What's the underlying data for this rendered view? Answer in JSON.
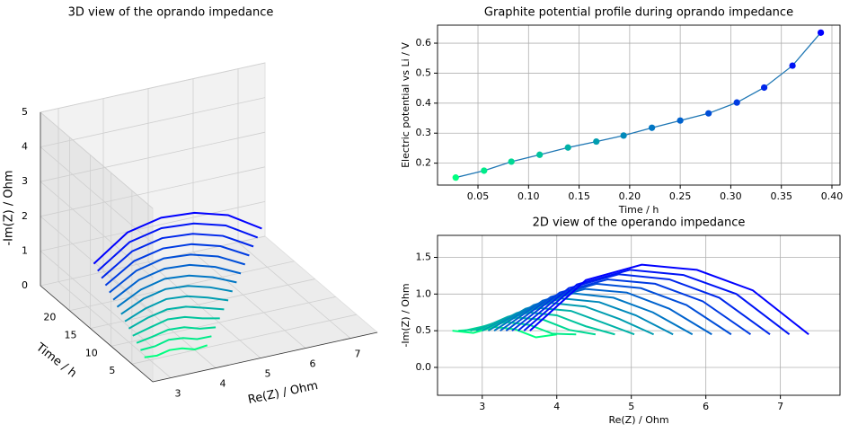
{
  "chart_data": [
    {
      "type": "line3d",
      "title": "3D view of the oprando impedance",
      "xlabel": "Re(Z) / Ohm",
      "ylabel": "Time / h",
      "zlabel": "-Im(Z) / Ohm",
      "xlim": [
        2.6,
        7.6
      ],
      "xticks": [
        3,
        4,
        5,
        6,
        7
      ],
      "ylim": [
        0,
        27
      ],
      "yticks": [
        5,
        10,
        15,
        20
      ],
      "zlim": [
        0,
        5
      ],
      "zticks": [
        0,
        1,
        2,
        3,
        4,
        5
      ],
      "series": [
        {
          "time": 2,
          "color": "#00ff80",
          "x": [
            2.6,
            2.88,
            3.16,
            3.44,
            3.72,
            4.0
          ],
          "values": [
            0.5,
            0.47,
            0.55,
            0.52,
            0.41,
            0.45
          ]
        },
        {
          "time": 3.8,
          "color": "#00eb89",
          "x": [
            2.68,
            3.0,
            3.31,
            3.63,
            3.94,
            4.26
          ],
          "values": [
            0.5,
            0.52,
            0.62,
            0.58,
            0.46,
            0.45
          ]
        },
        {
          "time": 5.6,
          "color": "#00d893",
          "x": [
            2.76,
            3.11,
            3.46,
            3.82,
            4.17,
            4.52
          ],
          "values": [
            0.5,
            0.58,
            0.68,
            0.65,
            0.51,
            0.45
          ]
        },
        {
          "time": 7.4,
          "color": "#00c49d",
          "x": [
            2.84,
            3.23,
            3.62,
            4.0,
            4.39,
            4.78
          ],
          "values": [
            0.5,
            0.63,
            0.75,
            0.71,
            0.56,
            0.45
          ]
        },
        {
          "time": 9.2,
          "color": "#00b1a7",
          "x": [
            2.92,
            3.34,
            3.77,
            4.19,
            4.62,
            5.04
          ],
          "values": [
            0.5,
            0.69,
            0.81,
            0.77,
            0.61,
            0.45
          ]
        },
        {
          "time": 11,
          "color": "#009db0",
          "x": [
            3.0,
            3.46,
            3.92,
            4.38,
            4.84,
            5.3
          ],
          "values": [
            0.5,
            0.74,
            0.88,
            0.83,
            0.66,
            0.45
          ]
        },
        {
          "time": 12.8,
          "color": "#0089ba",
          "x": [
            3.08,
            3.58,
            4.07,
            4.57,
            5.06,
            5.56
          ],
          "values": [
            0.5,
            0.8,
            0.94,
            0.89,
            0.71,
            0.45
          ]
        },
        {
          "time": 14.6,
          "color": "#0076c4",
          "x": [
            3.16,
            3.69,
            4.22,
            4.76,
            5.29,
            5.82
          ],
          "values": [
            0.5,
            0.85,
            1.01,
            0.95,
            0.75,
            0.45
          ]
        },
        {
          "time": 16.4,
          "color": "#0062ce",
          "x": [
            3.24,
            3.81,
            4.38,
            4.94,
            5.51,
            6.08
          ],
          "values": [
            0.5,
            0.91,
            1.07,
            1.02,
            0.8,
            0.45
          ]
        },
        {
          "time": 18.2,
          "color": "#004ed8",
          "x": [
            3.32,
            3.92,
            4.53,
            5.13,
            5.74,
            6.34
          ],
          "values": [
            0.5,
            0.96,
            1.14,
            1.08,
            0.85,
            0.45
          ]
        },
        {
          "time": 20,
          "color": "#003be2",
          "x": [
            3.4,
            4.04,
            4.68,
            5.32,
            5.96,
            6.6
          ],
          "values": [
            0.5,
            1.02,
            1.2,
            1.14,
            0.9,
            0.45
          ]
        },
        {
          "time": 21.8,
          "color": "#0027eb",
          "x": [
            3.48,
            4.16,
            4.83,
            5.51,
            6.18,
            6.86
          ],
          "values": [
            0.5,
            1.08,
            1.27,
            1.2,
            0.95,
            0.45
          ]
        },
        {
          "time": 23.6,
          "color": "#0014f5",
          "x": [
            3.56,
            4.27,
            4.98,
            5.7,
            6.41,
            7.12
          ],
          "values": [
            0.5,
            1.13,
            1.33,
            1.26,
            1.0,
            0.45
          ]
        },
        {
          "time": 25.4,
          "color": "#0000ff",
          "x": [
            3.64,
            4.39,
            5.14,
            5.88,
            6.63,
            7.38
          ],
          "values": [
            0.5,
            1.19,
            1.4,
            1.33,
            1.05,
            0.45
          ]
        }
      ]
    },
    {
      "type": "line",
      "title": "Graphite potential profile during oprando impedance",
      "xlabel": "Time / h",
      "ylabel": "Electric potential vs Li / V",
      "color": "#1f77b4",
      "grid": true,
      "x": [
        0.028,
        0.056,
        0.083,
        0.111,
        0.139,
        0.167,
        0.194,
        0.222,
        0.25,
        0.278,
        0.306,
        0.333,
        0.361,
        0.389
      ],
      "values": [
        0.152,
        0.175,
        0.205,
        0.228,
        0.252,
        0.272,
        0.292,
        0.318,
        0.342,
        0.366,
        0.402,
        0.452,
        0.525,
        0.635
      ],
      "point_colors": [
        "#00ff80",
        "#00eb89",
        "#00d893",
        "#00c49d",
        "#00b1a7",
        "#009db0",
        "#0089ba",
        "#0076c4",
        "#0062ce",
        "#004ed8",
        "#003be2",
        "#0027eb",
        "#0014f5",
        "#0000ff"
      ],
      "xlim": [
        0.01,
        0.408
      ],
      "xticks": [
        0.05,
        {
          "value": 0.1,
          "label": "0.10"
        },
        0.15,
        {
          "value": 0.2,
          "label": "0.20"
        },
        0.25,
        {
          "value": 0.3,
          "label": "0.30"
        },
        0.35,
        {
          "value": 0.4,
          "label": "0.40"
        }
      ],
      "ylim": [
        0.127,
        0.66
      ],
      "yticks": [
        0.2,
        0.3,
        0.4,
        0.5,
        0.6
      ]
    },
    {
      "type": "line",
      "title": "2D view of the operando impedance",
      "xlabel": "Re(Z) / Ohm",
      "ylabel": "-Im(Z) / Ohm",
      "grid": true,
      "xlim": [
        2.4,
        7.8
      ],
      "xticks": [
        3,
        4,
        5,
        6,
        7
      ],
      "ylim": [
        -0.38,
        1.8
      ],
      "yticks": [
        {
          "value": 0,
          "label": "0.0"
        },
        0.5,
        {
          "value": 1,
          "label": "1.0"
        },
        1.5
      ],
      "series": [
        {
          "color": "#00ff80",
          "x": [
            2.6,
            2.88,
            3.16,
            3.44,
            3.72,
            4.0
          ],
          "values": [
            0.5,
            0.47,
            0.55,
            0.52,
            0.41,
            0.45
          ]
        },
        {
          "color": "#00eb89",
          "x": [
            2.68,
            3.0,
            3.31,
            3.63,
            3.94,
            4.26
          ],
          "values": [
            0.5,
            0.52,
            0.62,
            0.58,
            0.46,
            0.45
          ]
        },
        {
          "color": "#00d893",
          "x": [
            2.76,
            3.11,
            3.46,
            3.82,
            4.17,
            4.52
          ],
          "values": [
            0.5,
            0.58,
            0.68,
            0.65,
            0.51,
            0.45
          ]
        },
        {
          "color": "#00c49d",
          "x": [
            2.84,
            3.23,
            3.62,
            4.0,
            4.39,
            4.78
          ],
          "values": [
            0.5,
            0.63,
            0.75,
            0.71,
            0.56,
            0.45
          ]
        },
        {
          "color": "#00b1a7",
          "x": [
            2.92,
            3.34,
            3.77,
            4.19,
            4.62,
            5.04
          ],
          "values": [
            0.5,
            0.69,
            0.81,
            0.77,
            0.61,
            0.45
          ]
        },
        {
          "color": "#009db0",
          "x": [
            3.0,
            3.46,
            3.92,
            4.38,
            4.84,
            5.3
          ],
          "values": [
            0.5,
            0.74,
            0.88,
            0.83,
            0.66,
            0.45
          ]
        },
        {
          "color": "#0089ba",
          "x": [
            3.08,
            3.58,
            4.07,
            4.57,
            5.06,
            5.56
          ],
          "values": [
            0.5,
            0.8,
            0.94,
            0.89,
            0.71,
            0.45
          ]
        },
        {
          "color": "#0076c4",
          "x": [
            3.16,
            3.69,
            4.22,
            4.76,
            5.29,
            5.82
          ],
          "values": [
            0.5,
            0.85,
            1.01,
            0.95,
            0.75,
            0.45
          ]
        },
        {
          "color": "#0062ce",
          "x": [
            3.24,
            3.81,
            4.38,
            4.94,
            5.51,
            6.08
          ],
          "values": [
            0.5,
            0.91,
            1.07,
            1.02,
            0.8,
            0.45
          ]
        },
        {
          "color": "#004ed8",
          "x": [
            3.32,
            3.92,
            4.53,
            5.13,
            5.74,
            6.34
          ],
          "values": [
            0.5,
            0.96,
            1.14,
            1.08,
            0.85,
            0.45
          ]
        },
        {
          "color": "#003be2",
          "x": [
            3.4,
            4.04,
            4.68,
            5.32,
            5.96,
            6.6
          ],
          "values": [
            0.5,
            1.02,
            1.2,
            1.14,
            0.9,
            0.45
          ]
        },
        {
          "color": "#0027eb",
          "x": [
            3.48,
            4.16,
            4.83,
            5.51,
            6.18,
            6.86
          ],
          "values": [
            0.5,
            1.08,
            1.27,
            1.2,
            0.95,
            0.45
          ]
        },
        {
          "color": "#0014f5",
          "x": [
            3.56,
            4.27,
            4.98,
            5.7,
            6.41,
            7.12
          ],
          "values": [
            0.5,
            1.13,
            1.33,
            1.26,
            1.0,
            0.45
          ]
        },
        {
          "color": "#0000ff",
          "x": [
            3.64,
            4.39,
            5.14,
            5.88,
            6.63,
            7.38
          ],
          "values": [
            0.5,
            1.19,
            1.4,
            1.33,
            1.05,
            0.45
          ]
        }
      ]
    }
  ]
}
